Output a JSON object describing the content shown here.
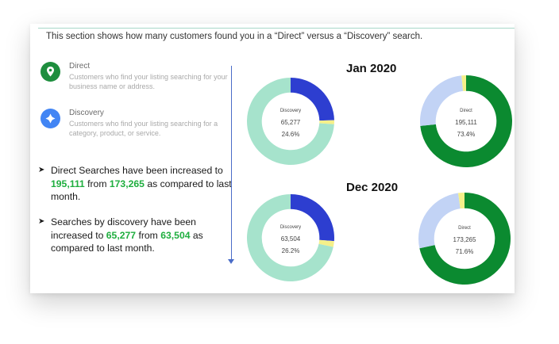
{
  "intro_text": "This section shows how many customers found you in a “Direct” versus a “Discovery” search.",
  "legend": {
    "direct": {
      "title": "Direct",
      "desc": "Customers who find your listing searching for your business name or address.",
      "color": "#1e8e3e",
      "icon": "location-pin-icon"
    },
    "discovery": {
      "title": "Discovery",
      "desc": "Customers who find your listing searching for a category, product, or service.",
      "color": "#4285f4",
      "icon": "discovery-icon"
    }
  },
  "bullets": {
    "b1": {
      "a": "Direct Searches have been increased to ",
      "v1": "195,111",
      "b": " from ",
      "v2": "173,265",
      "c": "  as compared to last month."
    },
    "b2": {
      "a": "Searches by discovery have been increased to ",
      "v1": "65,277",
      "b": " from ",
      "v2": "63,504",
      "c": " as compared to last month."
    }
  },
  "periods": {
    "jan": "Jan 2020",
    "dec": "Dec 2020"
  },
  "chart_data": [
    {
      "type": "pie",
      "name": "Discovery",
      "period": "Jan 2020",
      "center_title": "Discovery",
      "center_value": "65,277",
      "center_pct": "24.6%",
      "slices": [
        {
          "label": "Discovery",
          "value": 24.6,
          "color": "#2d3ed0"
        },
        {
          "label": "other-small",
          "value": 1.5,
          "color": "#f5f08a"
        },
        {
          "label": "rest",
          "value": 73.9,
          "color": "#a6e3cc"
        }
      ]
    },
    {
      "type": "pie",
      "name": "Direct",
      "period": "Jan 2020",
      "center_title": "Direct",
      "center_value": "195,111",
      "center_pct": "73.4%",
      "slices": [
        {
          "label": "Direct",
          "value": 73.4,
          "color": "#0b8a30"
        },
        {
          "label": "rest",
          "value": 25.0,
          "color": "#c2d3f5"
        },
        {
          "label": "other-small",
          "value": 1.6,
          "color": "#f5f08a"
        }
      ]
    },
    {
      "type": "pie",
      "name": "Discovery",
      "period": "Dec 2020",
      "center_title": "Discovery",
      "center_value": "63,504",
      "center_pct": "26.2%",
      "slices": [
        {
          "label": "Discovery",
          "value": 26.2,
          "color": "#2d3ed0"
        },
        {
          "label": "other-small",
          "value": 2.2,
          "color": "#f5f08a"
        },
        {
          "label": "rest",
          "value": 71.6,
          "color": "#a6e3cc"
        }
      ]
    },
    {
      "type": "pie",
      "name": "Direct",
      "period": "Dec 2020",
      "center_title": "Direct",
      "center_value": "173,265",
      "center_pct": "71.6%",
      "slices": [
        {
          "label": "Direct",
          "value": 71.6,
          "color": "#0b8a30"
        },
        {
          "label": "rest",
          "value": 26.2,
          "color": "#c2d3f5"
        },
        {
          "label": "other-small",
          "value": 2.2,
          "color": "#f5f08a"
        }
      ]
    }
  ]
}
